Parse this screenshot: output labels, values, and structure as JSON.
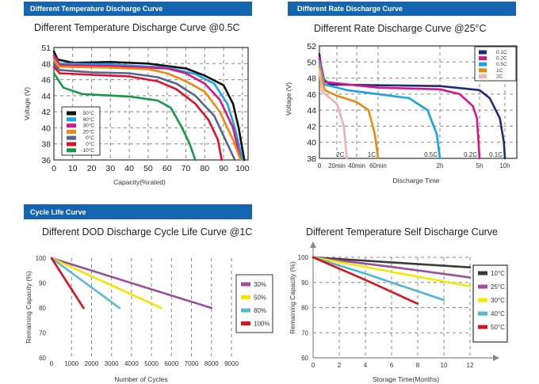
{
  "charts": [
    {
      "header": "Different Temperature Discharge Curve",
      "title": "Different Temperature Discharge Curve @0.5C",
      "type": "line",
      "xlabel": "Capacity(%rated)",
      "ylabel": "Voltage (V)",
      "xticks": [
        0,
        10,
        20,
        30,
        40,
        50,
        60,
        70,
        80,
        90,
        100
      ],
      "yticks": [
        36,
        38,
        40,
        42,
        44,
        46,
        48,
        51
      ],
      "xlim": [
        0,
        103
      ],
      "ylim": [
        36,
        51
      ],
      "grid": true,
      "legend_position": "bottom-left",
      "series": [
        {
          "name": "50°C",
          "color": "#111111",
          "points": [
            [
              0,
              49.5
            ],
            [
              2,
              48.5
            ],
            [
              10,
              48.1
            ],
            [
              30,
              48.2
            ],
            [
              50,
              48
            ],
            [
              70,
              47.4
            ],
            [
              80,
              46.5
            ],
            [
              90,
              45.3
            ],
            [
              95,
              43
            ],
            [
              98,
              40
            ],
            [
              101,
              36
            ]
          ]
        },
        {
          "name": "40°C",
          "color": "#1aa3e8",
          "points": [
            [
              0,
              49
            ],
            [
              3,
              48
            ],
            [
              30,
              47.9
            ],
            [
              60,
              47.5
            ],
            [
              75,
              46.7
            ],
            [
              85,
              45.5
            ],
            [
              92,
              43
            ],
            [
              96,
              40
            ],
            [
              100,
              36
            ]
          ]
        },
        {
          "name": "30°C",
          "color": "#d6168a",
          "points": [
            [
              0,
              49
            ],
            [
              3,
              47.8
            ],
            [
              30,
              47.7
            ],
            [
              60,
              47.4
            ],
            [
              70,
              46.8
            ],
            [
              80,
              45.5
            ],
            [
              88,
              43.5
            ],
            [
              95,
              40
            ],
            [
              99,
              36
            ]
          ]
        },
        {
          "name": "20°C",
          "color": "#f08a0c",
          "points": [
            [
              0,
              48.5
            ],
            [
              3,
              47.6
            ],
            [
              30,
              47.5
            ],
            [
              50,
              47.3
            ],
            [
              60,
              46.8
            ],
            [
              70,
              45.8
            ],
            [
              80,
              44.5
            ],
            [
              88,
              42
            ],
            [
              95,
              38.5
            ],
            [
              99,
              36
            ]
          ]
        },
        {
          "name": "0°C",
          "color": "#56678f",
          "points": [
            [
              0,
              48
            ],
            [
              3,
              47.2
            ],
            [
              20,
              46.9
            ],
            [
              40,
              46.8
            ],
            [
              55,
              46.3
            ],
            [
              65,
              45.5
            ],
            [
              75,
              44
            ],
            [
              85,
              41.5
            ],
            [
              92,
              38
            ],
            [
              96,
              36
            ]
          ]
        },
        {
          "name": "0°C",
          "color": "#e0102a",
          "points": [
            [
              0,
              47.6
            ],
            [
              3,
              46.8
            ],
            [
              20,
              46.6
            ],
            [
              40,
              46.4
            ],
            [
              55,
              45.8
            ],
            [
              65,
              44.8
            ],
            [
              75,
              43
            ],
            [
              82,
              41
            ],
            [
              87,
              38.5
            ],
            [
              89,
              36
            ]
          ]
        },
        {
          "name": "-10°C",
          "color": "#129a4a",
          "points": [
            [
              0,
              46.8
            ],
            [
              5,
              45
            ],
            [
              15,
              44.2
            ],
            [
              40,
              43.9
            ],
            [
              55,
              43.4
            ],
            [
              62,
              42.5
            ],
            [
              68,
              40
            ],
            [
              72,
              38
            ],
            [
              75,
              36
            ]
          ]
        }
      ]
    },
    {
      "header": "Different Rate Discharge Curve",
      "title": "Different Rate Discharge Curve @25°C",
      "type": "line",
      "xlabel": "Discharge Time",
      "ylabel": "Voltage (V)",
      "xticks": [
        {
          "label": "0",
          "hours": 0
        },
        {
          "label": "20min",
          "hours": 0.333
        },
        {
          "label": "40min",
          "hours": 0.667
        },
        {
          "label": "60min",
          "hours": 1
        },
        {
          "label": "2h",
          "hours": 2
        },
        {
          "label": "5h",
          "hours": 5
        },
        {
          "label": "10h",
          "hours": 10
        }
      ],
      "yticks": [
        38,
        40,
        42,
        44,
        46,
        48,
        50,
        52
      ],
      "ylim": [
        38,
        52
      ],
      "grid": true,
      "legend_position": "top-right",
      "series": [
        {
          "name": "0.1C",
          "curve_label": "0.1C",
          "color": "#1f2a7a",
          "points": [
            [
              0,
              51
            ],
            [
              0.05,
              48
            ],
            [
              0.2,
              47.2
            ],
            [
              1,
              47.1
            ],
            [
              2,
              47
            ],
            [
              5,
              46.5
            ],
            [
              7,
              45.5
            ],
            [
              9,
              43
            ],
            [
              9.8,
              40
            ],
            [
              10,
              38
            ]
          ]
        },
        {
          "name": "0.2C",
          "curve_label": "0.2C",
          "color": "#d6168a",
          "points": [
            [
              0,
              50.5
            ],
            [
              0.1,
              47.5
            ],
            [
              1,
              46.8
            ],
            [
              2,
              46.6
            ],
            [
              3.5,
              46
            ],
            [
              4.5,
              44.5
            ],
            [
              4.8,
              43
            ],
            [
              5,
              38
            ]
          ]
        },
        {
          "name": "0.5C",
          "curve_label": "0.5C",
          "color": "#1aa3e8",
          "points": [
            [
              0,
              50
            ],
            [
              0.1,
              47.2
            ],
            [
              0.5,
              46.5
            ],
            [
              1,
              46
            ],
            [
              1.5,
              45.5
            ],
            [
              1.8,
              44
            ],
            [
              1.95,
              41
            ],
            [
              2,
              38
            ]
          ]
        },
        {
          "name": "1C",
          "curve_label": "1C",
          "color": "#e88a10",
          "points": [
            [
              0,
              49.5
            ],
            [
              0.1,
              46.5
            ],
            [
              0.333,
              45.8
            ],
            [
              0.667,
              45
            ],
            [
              0.85,
              44
            ],
            [
              0.95,
              41
            ],
            [
              1,
              38
            ]
          ]
        },
        {
          "name": "2C",
          "curve_label": "2C",
          "color": "#f0b0b0",
          "points": [
            [
              0,
              49
            ],
            [
              0.05,
              46.3
            ],
            [
              0.2,
              45.5
            ],
            [
              0.333,
              44.8
            ],
            [
              0.45,
              42
            ],
            [
              0.5,
              38
            ]
          ]
        }
      ]
    },
    {
      "header": "Cycle Life Curve",
      "title": "Different DOD Discharge Cycle Life Curve @1C",
      "type": "line",
      "xlabel": "Number of Cycles",
      "ylabel": "Remaining Capacity (%)",
      "xticks": [
        0,
        1000,
        2000,
        3000,
        4000,
        5000,
        6000,
        7000,
        8000,
        9000
      ],
      "yticks": [
        60,
        70,
        80,
        90,
        100
      ],
      "xlim": [
        0,
        9000
      ],
      "ylim": [
        60,
        100
      ],
      "grid": true,
      "legend_position": "right",
      "series": [
        {
          "name": "30%",
          "color": "#9b4f96",
          "points": [
            [
              0,
              100
            ],
            [
              8000,
              80
            ]
          ]
        },
        {
          "name": "50%",
          "color": "#f5e400",
          "points": [
            [
              0,
              100
            ],
            [
              5500,
              80
            ]
          ]
        },
        {
          "name": "80%",
          "color": "#5bbccc",
          "points": [
            [
              0,
              100
            ],
            [
              3400,
              80
            ]
          ]
        },
        {
          "name": "100%",
          "color": "#d9141e",
          "points": [
            [
              0,
              100
            ],
            [
              1600,
              80
            ]
          ]
        }
      ]
    },
    {
      "title": "Different Temperature Self Discharge Curve",
      "type": "line",
      "xlabel": "Storage Time(Months)",
      "ylabel": "Remaining Capacity (%)",
      "xticks": [
        0,
        2,
        4,
        6,
        8,
        10,
        12
      ],
      "yticks": [
        60,
        70,
        80,
        90,
        100
      ],
      "xlim": [
        0,
        12
      ],
      "ylim": [
        60,
        100
      ],
      "grid": true,
      "legend_position": "right",
      "series": [
        {
          "name": "10°C",
          "color": "#3a3a3a",
          "points": [
            [
              0,
              100
            ],
            [
              6,
              98
            ],
            [
              12,
              96
            ]
          ]
        },
        {
          "name": "25°C",
          "color": "#9b4f96",
          "points": [
            [
              0,
              100
            ],
            [
              6,
              96.2
            ],
            [
              12,
              92
            ]
          ]
        },
        {
          "name": "30°C",
          "color": "#f5e800",
          "points": [
            [
              0,
              100
            ],
            [
              6,
              94.2
            ],
            [
              12,
              88.5
            ]
          ]
        },
        {
          "name": "40°C",
          "color": "#4fb8cf",
          "points": [
            [
              0,
              100
            ],
            [
              4,
              93.5
            ],
            [
              8,
              86.5
            ],
            [
              10,
              83
            ]
          ]
        },
        {
          "name": "50°C",
          "color": "#d9141e",
          "points": [
            [
              0,
              100
            ],
            [
              4,
              91
            ],
            [
              8,
              81.5
            ]
          ]
        }
      ]
    }
  ],
  "colors": {
    "header_band": "#1565b0"
  }
}
